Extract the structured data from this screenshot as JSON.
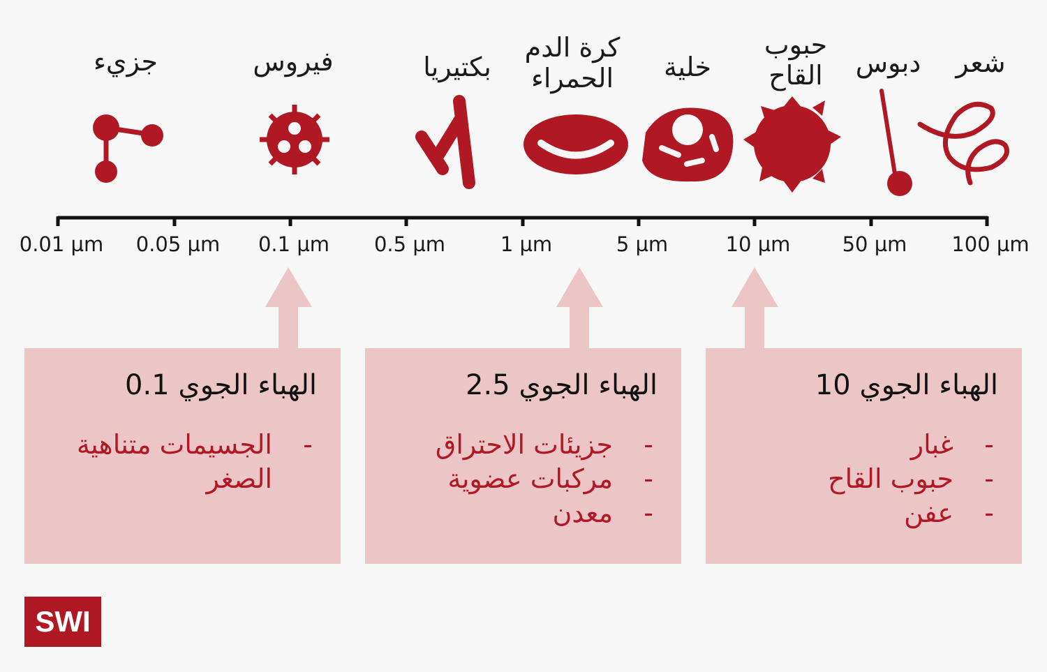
{
  "colors": {
    "accent": "#b01823",
    "box": "#ecc5c6",
    "background": "#f7f7f7"
  },
  "objects": [
    {
      "label": "جزيء",
      "icon": "molecule-icon"
    },
    {
      "label": "فيروس",
      "icon": "virus-icon"
    },
    {
      "label": "بكتيريا",
      "icon": "bacteria-icon"
    },
    {
      "label": "كرة الدم الحمراء",
      "icon": "red-blood-cell-icon"
    },
    {
      "label": "خلية",
      "icon": "cell-icon"
    },
    {
      "label": "حبوب القاح",
      "icon": "pollen-icon"
    },
    {
      "label": "دبوس",
      "icon": "pin-icon"
    },
    {
      "label": "شعر",
      "icon": "hair-icon"
    }
  ],
  "scale": [
    "0.01 µm",
    "0.05 µm",
    "0.1 µm",
    "0.5 µm",
    "1 µm",
    "5 µm",
    "10 µm",
    "50 µm",
    "100 µm"
  ],
  "boxes": [
    {
      "title": "الهباء الجوي 0.1",
      "items": [
        "الجسيمات متناهية الصغر"
      ],
      "points_to": "0.1 µm"
    },
    {
      "title": "الهباء الجوي 2.5",
      "items": [
        "جزيئات الاحتراق",
        "مركبات عضوية",
        "معدن"
      ],
      "points_to": "2.5 µm"
    },
    {
      "title": "الهباء الجوي 10",
      "items": [
        "غبار",
        "حبوب القاح",
        "عفن"
      ],
      "points_to": "10 µm"
    }
  ],
  "logo": "SWI"
}
